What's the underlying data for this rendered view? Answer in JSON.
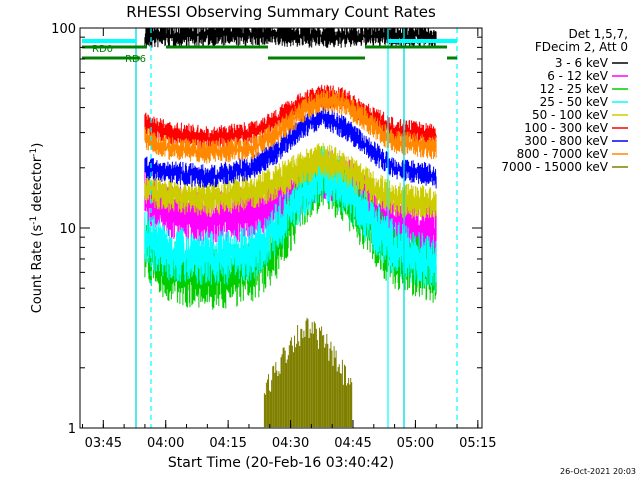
{
  "chart_data": {
    "type": "line",
    "title": "RHESSI Observing Summary Count Rates",
    "xlabel": "Start Time (20-Feb-16 03:40:42)",
    "ylabel": "Count Rate (s",
    "ylabel_sup": "-1",
    "ylabel_tail": " detector",
    "ylabel_end": ")",
    "y_scale": "log",
    "ylim": [
      1,
      100
    ],
    "y_ticks": [
      "1",
      "10",
      "100"
    ],
    "xlim_minutes": [
      -1.3,
      95.3
    ],
    "x_tick_labels": [
      {
        "label": "03:45",
        "t": 4.3
      },
      {
        "label": "04:00",
        "t": 19.3
      },
      {
        "label": "04:15",
        "t": 34.3
      },
      {
        "label": "04:30",
        "t": 49.3
      },
      {
        "label": "04:45",
        "t": 64.3
      },
      {
        "label": "05:00",
        "t": 79.3
      },
      {
        "label": "05:15",
        "t": 94.3
      }
    ],
    "legend_header": [
      "Det 1,5,7,",
      "FDecim 2, Att 0"
    ],
    "legend_position": "right",
    "series": [
      {
        "name": "3 - 6 keV",
        "color": "#000000",
        "points": [
          [
            14.3,
            90
          ],
          [
            20,
            92
          ],
          [
            30,
            93
          ],
          [
            40,
            93
          ],
          [
            50,
            92
          ],
          [
            60,
            91
          ],
          [
            70,
            92
          ],
          [
            80,
            92
          ],
          [
            84.3,
            90
          ]
        ]
      },
      {
        "name": "6 - 12 keV",
        "color": "#ff00ff",
        "points": [
          [
            14.3,
            14
          ],
          [
            20,
            12
          ],
          [
            30,
            11
          ],
          [
            40,
            12
          ],
          [
            46,
            13
          ],
          [
            52,
            16
          ],
          [
            57,
            19
          ],
          [
            62,
            17
          ],
          [
            67,
            14
          ],
          [
            74,
            10.5
          ],
          [
            80,
            10
          ],
          [
            84.3,
            9.5
          ]
        ]
      },
      {
        "name": "12 - 25 keV",
        "color": "#00cc00",
        "points": [
          [
            14.3,
            8
          ],
          [
            20,
            6
          ],
          [
            30,
            5.5
          ],
          [
            40,
            6
          ],
          [
            46,
            8
          ],
          [
            52,
            14
          ],
          [
            57,
            18
          ],
          [
            62,
            15
          ],
          [
            67,
            11
          ],
          [
            74,
            7
          ],
          [
            80,
            6.5
          ],
          [
            84.3,
            6
          ]
        ]
      },
      {
        "name": "25 - 50 keV",
        "color": "#00ffff",
        "points": [
          [
            14.3,
            9
          ],
          [
            20,
            7.5
          ],
          [
            30,
            7
          ],
          [
            40,
            7.5
          ],
          [
            46,
            10
          ],
          [
            52,
            15
          ],
          [
            57,
            19
          ],
          [
            62,
            16
          ],
          [
            67,
            12
          ],
          [
            74,
            8
          ],
          [
            80,
            7
          ],
          [
            84.3,
            6.5
          ]
        ]
      },
      {
        "name": "50 - 100 keV",
        "color": "#cccc00",
        "points": [
          [
            14.3,
            16
          ],
          [
            20,
            14.5
          ],
          [
            30,
            14
          ],
          [
            40,
            15
          ],
          [
            46,
            17
          ],
          [
            52,
            20
          ],
          [
            57,
            22
          ],
          [
            62,
            20
          ],
          [
            67,
            17
          ],
          [
            74,
            14
          ],
          [
            80,
            13.5
          ],
          [
            84.3,
            13
          ]
        ]
      },
      {
        "name": "100 - 300 keV",
        "color": "#ff0000",
        "points": [
          [
            14.3,
            33
          ],
          [
            20,
            30
          ],
          [
            30,
            28
          ],
          [
            40,
            30
          ],
          [
            46,
            35
          ],
          [
            52,
            42
          ],
          [
            57,
            46
          ],
          [
            62,
            44
          ],
          [
            67,
            38
          ],
          [
            74,
            31
          ],
          [
            80,
            30
          ],
          [
            84.3,
            29
          ]
        ]
      },
      {
        "name": "300 - 800 keV",
        "color": "#0000ff",
        "points": [
          [
            14.3,
            20
          ],
          [
            20,
            19
          ],
          [
            30,
            18
          ],
          [
            40,
            20
          ],
          [
            46,
            24
          ],
          [
            52,
            32
          ],
          [
            57,
            36
          ],
          [
            62,
            32
          ],
          [
            67,
            26
          ],
          [
            74,
            20
          ],
          [
            80,
            19
          ],
          [
            84.3,
            18
          ]
        ]
      },
      {
        "name": "800 - 7000 keV",
        "color": "#ff8800",
        "points": [
          [
            14.3,
            28
          ],
          [
            20,
            25
          ],
          [
            30,
            24
          ],
          [
            40,
            25
          ],
          [
            46,
            30
          ],
          [
            52,
            38
          ],
          [
            57,
            44
          ],
          [
            62,
            42
          ],
          [
            67,
            35
          ],
          [
            74,
            27
          ],
          [
            80,
            26
          ],
          [
            84.3,
            25
          ]
        ]
      },
      {
        "name": "7000 - 15000 keV",
        "color": "#808000",
        "points": [
          [
            43,
            1.5
          ],
          [
            47,
            2.2
          ],
          [
            50,
            2.8
          ],
          [
            53,
            3.2
          ],
          [
            57,
            2.8
          ],
          [
            60,
            2.2
          ],
          [
            64,
            1.6
          ]
        ]
      }
    ],
    "annotations": [
      {
        "label": "RD0",
        "color": "#008000"
      },
      {
        "label": "RD6",
        "color": "#008000"
      }
    ]
  },
  "timestamp": "26-Oct-2021 20:03"
}
